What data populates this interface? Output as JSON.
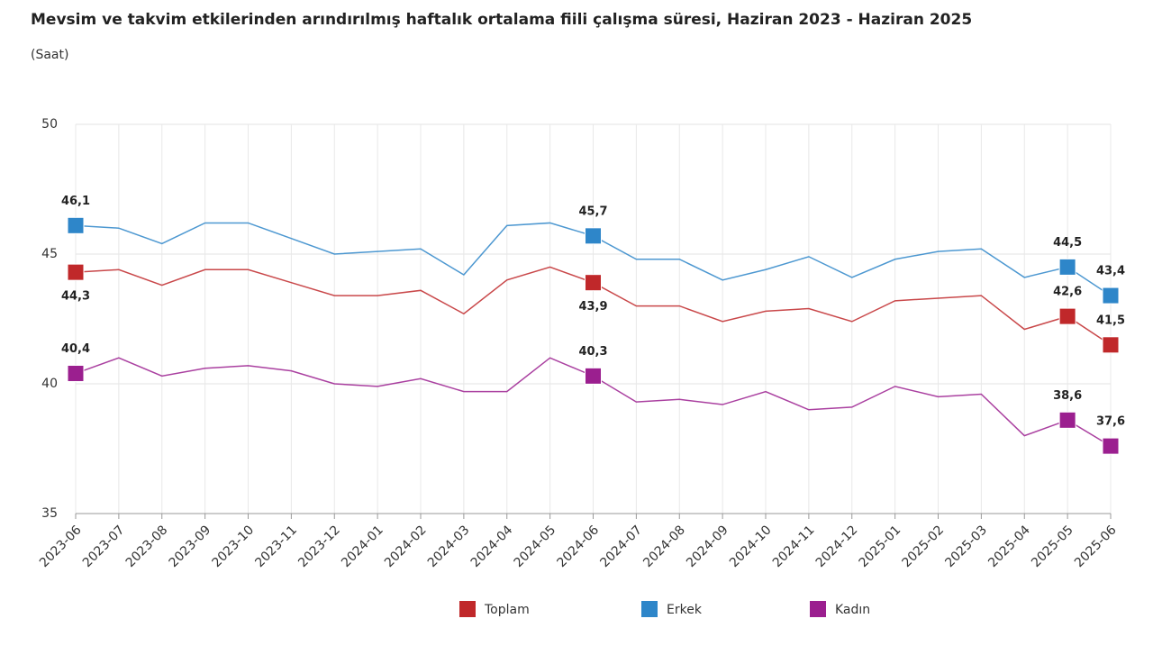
{
  "chart_data": {
    "type": "line",
    "title": "Mevsim ve takvim etkilerinden arındırılmış haftalık ortalama fiili çalışma süresi, Haziran 2023 - Haziran 2025",
    "subtitle": "(Saat)",
    "categories": [
      "2023-06",
      "2023-07",
      "2023-08",
      "2023-09",
      "2023-10",
      "2023-11",
      "2023-12",
      "2024-01",
      "2024-02",
      "2024-03",
      "2024-04",
      "2024-05",
      "2024-06",
      "2024-07",
      "2024-08",
      "2024-09",
      "2024-10",
      "2024-11",
      "2024-12",
      "2025-01",
      "2025-02",
      "2025-03",
      "2025-04",
      "2025-05",
      "2025-06"
    ],
    "series": [
      {
        "name": "Toplam",
        "color": "#c0282a",
        "values": [
          44.3,
          44.4,
          43.8,
          44.4,
          44.4,
          43.9,
          43.4,
          43.4,
          43.6,
          42.7,
          44.0,
          44.5,
          43.9,
          43.0,
          43.0,
          42.4,
          42.8,
          42.9,
          42.4,
          43.2,
          43.3,
          43.4,
          42.1,
          42.6,
          41.5
        ],
        "value_labels": [
          "44,3",
          null,
          null,
          null,
          null,
          null,
          null,
          null,
          null,
          null,
          null,
          null,
          "43,9",
          null,
          null,
          null,
          null,
          null,
          null,
          null,
          null,
          null,
          null,
          "42,6",
          "41,5"
        ]
      },
      {
        "name": "Erkek",
        "color": "#2e86c9",
        "values": [
          46.1,
          46.0,
          45.4,
          46.2,
          46.2,
          45.6,
          45.0,
          45.1,
          45.2,
          44.2,
          46.1,
          46.2,
          45.7,
          44.8,
          44.8,
          44.0,
          44.4,
          44.9,
          44.1,
          44.8,
          45.1,
          45.2,
          44.1,
          44.5,
          43.4
        ],
        "value_labels": [
          "46,1",
          null,
          null,
          null,
          null,
          null,
          null,
          null,
          null,
          null,
          null,
          null,
          "45,7",
          null,
          null,
          null,
          null,
          null,
          null,
          null,
          null,
          null,
          null,
          "44,5",
          "43,4"
        ]
      },
      {
        "name": "Kadın",
        "color": "#9b1f8f",
        "values": [
          40.4,
          41.0,
          40.3,
          40.6,
          40.7,
          40.5,
          40.0,
          39.9,
          40.2,
          39.7,
          39.7,
          41.0,
          40.3,
          39.3,
          39.4,
          39.2,
          39.7,
          39.0,
          39.1,
          39.9,
          39.5,
          39.6,
          38.0,
          38.6,
          37.6
        ],
        "value_labels": [
          "40,4",
          null,
          null,
          null,
          null,
          null,
          null,
          null,
          null,
          null,
          null,
          null,
          "40,3",
          null,
          null,
          null,
          null,
          null,
          null,
          null,
          null,
          null,
          null,
          "38,6",
          "37,6"
        ]
      }
    ],
    "ylim": [
      35,
      50
    ],
    "yticks": [
      35,
      40,
      45,
      50
    ],
    "grid": true,
    "legend": "bottom"
  }
}
